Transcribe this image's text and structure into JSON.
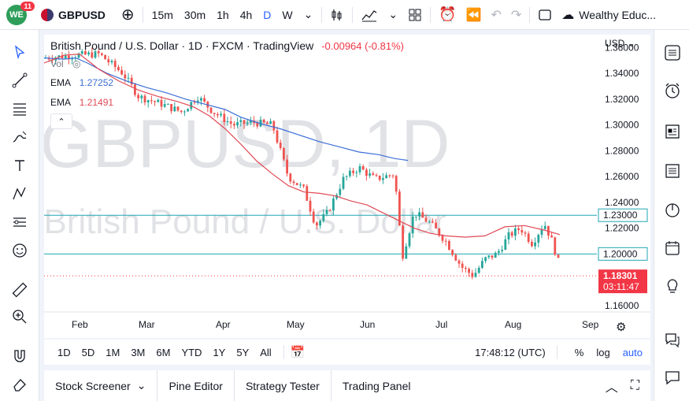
{
  "topbar": {
    "logo_text": "WE",
    "notification_count": "11",
    "symbol": "GBPUSD",
    "intervals": [
      "15m",
      "30m",
      "1h",
      "4h",
      "D",
      "W"
    ],
    "active_interval": "D",
    "account_label": "Wealthy Educ..."
  },
  "legend": {
    "title": "British Pound / U.S. Dollar · 1D · FXCM · TradingView",
    "change": "-0.00964 (-0.81%)",
    "vol_label": "Vol",
    "ema_label": "EMA",
    "ema1_value": "1.27252",
    "ema2_value": "1.21491"
  },
  "watermark": {
    "line1": "GBPUSD, 1D",
    "line2": "British Pound / U.S. Dollar"
  },
  "price_axis": {
    "currency": "USD",
    "ticks": [
      "1.36000",
      "1.34000",
      "1.32000",
      "1.30000",
      "1.28000",
      "1.26000",
      "1.24000",
      "1.22000",
      "1.20000",
      "1.18000",
      "1.16000"
    ],
    "level_tags": [
      "1.23000",
      "1.20000"
    ],
    "last_price": "1.18301",
    "countdown": "03:11:47"
  },
  "time_axis": {
    "labels": [
      "Feb",
      "Mar",
      "Apr",
      "May",
      "Jun",
      "Jul",
      "Aug",
      "Sep"
    ]
  },
  "colors": {
    "up": "#26a69a",
    "down": "#ef5350",
    "ema_slow": "#3c6fd6",
    "ema_fast": "#e04a55",
    "hline": "#22a6b3",
    "last_line": "#f23645"
  },
  "bottombar": {
    "ranges": [
      "1D",
      "5D",
      "1M",
      "3M",
      "6M",
      "YTD",
      "1Y",
      "5Y",
      "All"
    ],
    "clock": "17:48:12 (UTC)",
    "pct": "%",
    "log": "log",
    "auto": "auto"
  },
  "panels": [
    "Stock Screener",
    "Pine Editor",
    "Strategy Tester",
    "Trading Panel"
  ],
  "chart_data": {
    "type": "candlestick",
    "title": "British Pound / U.S. Dollar · 1D · FXCM",
    "ylim": [
      1.155,
      1.37
    ],
    "hlines": [
      1.23,
      1.2
    ],
    "last_price": 1.18301,
    "ema_slow": {
      "name": "EMA",
      "value": 1.27252,
      "points": [
        [
          0,
          1.352
        ],
        [
          25,
          1.351
        ],
        [
          40,
          1.352
        ],
        [
          55,
          1.348
        ],
        [
          80,
          1.34
        ],
        [
          105,
          1.334
        ],
        [
          130,
          1.329
        ],
        [
          155,
          1.325
        ],
        [
          180,
          1.32
        ],
        [
          205,
          1.316
        ],
        [
          230,
          1.312
        ],
        [
          250,
          1.306
        ],
        [
          275,
          1.301
        ],
        [
          300,
          1.297
        ],
        [
          325,
          1.292
        ],
        [
          350,
          1.287
        ],
        [
          375,
          1.283
        ],
        [
          400,
          1.279
        ],
        [
          425,
          1.277
        ],
        [
          445,
          1.274
        ],
        [
          462,
          1.2725
        ]
      ]
    },
    "ema_fast": {
      "name": "EMA",
      "value": 1.21491,
      "points": [
        [
          0,
          1.348
        ],
        [
          25,
          1.354
        ],
        [
          45,
          1.355
        ],
        [
          70,
          1.343
        ],
        [
          95,
          1.334
        ],
        [
          120,
          1.327
        ],
        [
          145,
          1.322
        ],
        [
          170,
          1.318
        ],
        [
          190,
          1.314
        ],
        [
          210,
          1.307
        ],
        [
          230,
          1.297
        ],
        [
          250,
          1.285
        ],
        [
          270,
          1.272
        ],
        [
          290,
          1.262
        ],
        [
          310,
          1.253
        ],
        [
          330,
          1.248
        ],
        [
          350,
          1.247
        ],
        [
          370,
          1.245
        ],
        [
          390,
          1.241
        ],
        [
          410,
          1.238
        ],
        [
          430,
          1.232
        ],
        [
          450,
          1.226
        ],
        [
          470,
          1.22
        ],
        [
          490,
          1.216
        ],
        [
          510,
          1.214
        ],
        [
          535,
          1.213
        ],
        [
          560,
          1.214
        ],
        [
          585,
          1.221
        ],
        [
          610,
          1.222
        ],
        [
          635,
          1.2185
        ],
        [
          655,
          1.215
        ]
      ]
    }
  }
}
